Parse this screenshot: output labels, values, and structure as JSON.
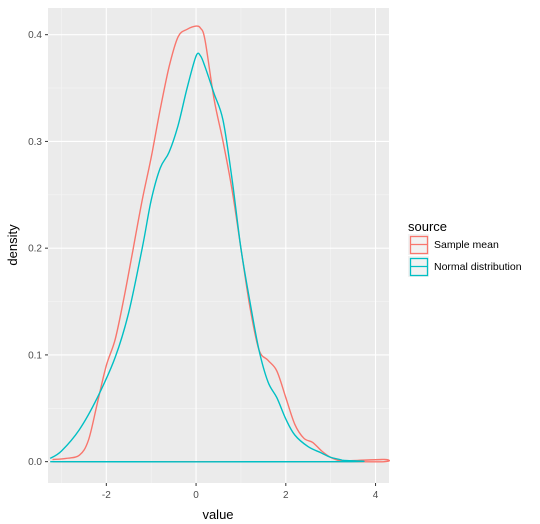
{
  "chart_data": {
    "type": "line",
    "title": "",
    "xlabel": "value",
    "ylabel": "density",
    "xlim": [
      -3.3,
      4.3
    ],
    "ylim": [
      -0.02,
      0.425
    ],
    "x_ticks": [
      -2,
      0,
      2,
      4
    ],
    "x_tick_labels": [
      "-2",
      "0",
      "2",
      "4"
    ],
    "y_ticks": [
      0.0,
      0.1,
      0.2,
      0.3,
      0.4
    ],
    "y_tick_labels": [
      "0.0",
      "0.1",
      "0.2",
      "0.3",
      "0.4"
    ],
    "grid": true,
    "legend": {
      "title": "source",
      "position": "right"
    },
    "series": [
      {
        "name": "Sample mean",
        "color": "#f8766d",
        "x": [
          -3.2,
          -2.9,
          -2.6,
          -2.4,
          -2.2,
          -2.0,
          -1.8,
          -1.6,
          -1.4,
          -1.2,
          -1.0,
          -0.8,
          -0.6,
          -0.4,
          -0.2,
          0.0,
          0.1,
          0.2,
          0.4,
          0.6,
          0.8,
          1.0,
          1.2,
          1.4,
          1.6,
          1.8,
          2.0,
          2.2,
          2.4,
          2.6,
          2.8,
          3.0,
          3.2,
          3.5,
          4.2,
          4.2,
          3.2,
          -3.2
        ],
        "y": [
          0.002,
          0.003,
          0.006,
          0.02,
          0.055,
          0.09,
          0.115,
          0.155,
          0.2,
          0.245,
          0.285,
          0.33,
          0.37,
          0.398,
          0.405,
          0.408,
          0.406,
          0.395,
          0.34,
          0.3,
          0.255,
          0.2,
          0.145,
          0.105,
          0.095,
          0.085,
          0.06,
          0.035,
          0.022,
          0.018,
          0.01,
          0.004,
          0.001,
          0.001,
          0.002,
          0.0,
          0.0,
          0.0
        ]
      },
      {
        "name": "Normal distribution",
        "color": "#00bfc4",
        "x": [
          -3.25,
          -3.0,
          -2.6,
          -2.2,
          -1.8,
          -1.5,
          -1.2,
          -1.0,
          -0.8,
          -0.6,
          -0.4,
          -0.2,
          0.0,
          0.1,
          0.2,
          0.4,
          0.6,
          0.8,
          1.0,
          1.2,
          1.4,
          1.6,
          1.8,
          2.0,
          2.2,
          2.5,
          2.8,
          3.0,
          3.25,
          3.25,
          -3.25
        ],
        "y": [
          0.003,
          0.01,
          0.03,
          0.06,
          0.098,
          0.14,
          0.2,
          0.245,
          0.275,
          0.29,
          0.315,
          0.35,
          0.38,
          0.38,
          0.37,
          0.345,
          0.32,
          0.265,
          0.2,
          0.15,
          0.105,
          0.075,
          0.06,
          0.04,
          0.025,
          0.014,
          0.008,
          0.004,
          0.0015,
          0.0,
          0.0
        ]
      }
    ]
  }
}
